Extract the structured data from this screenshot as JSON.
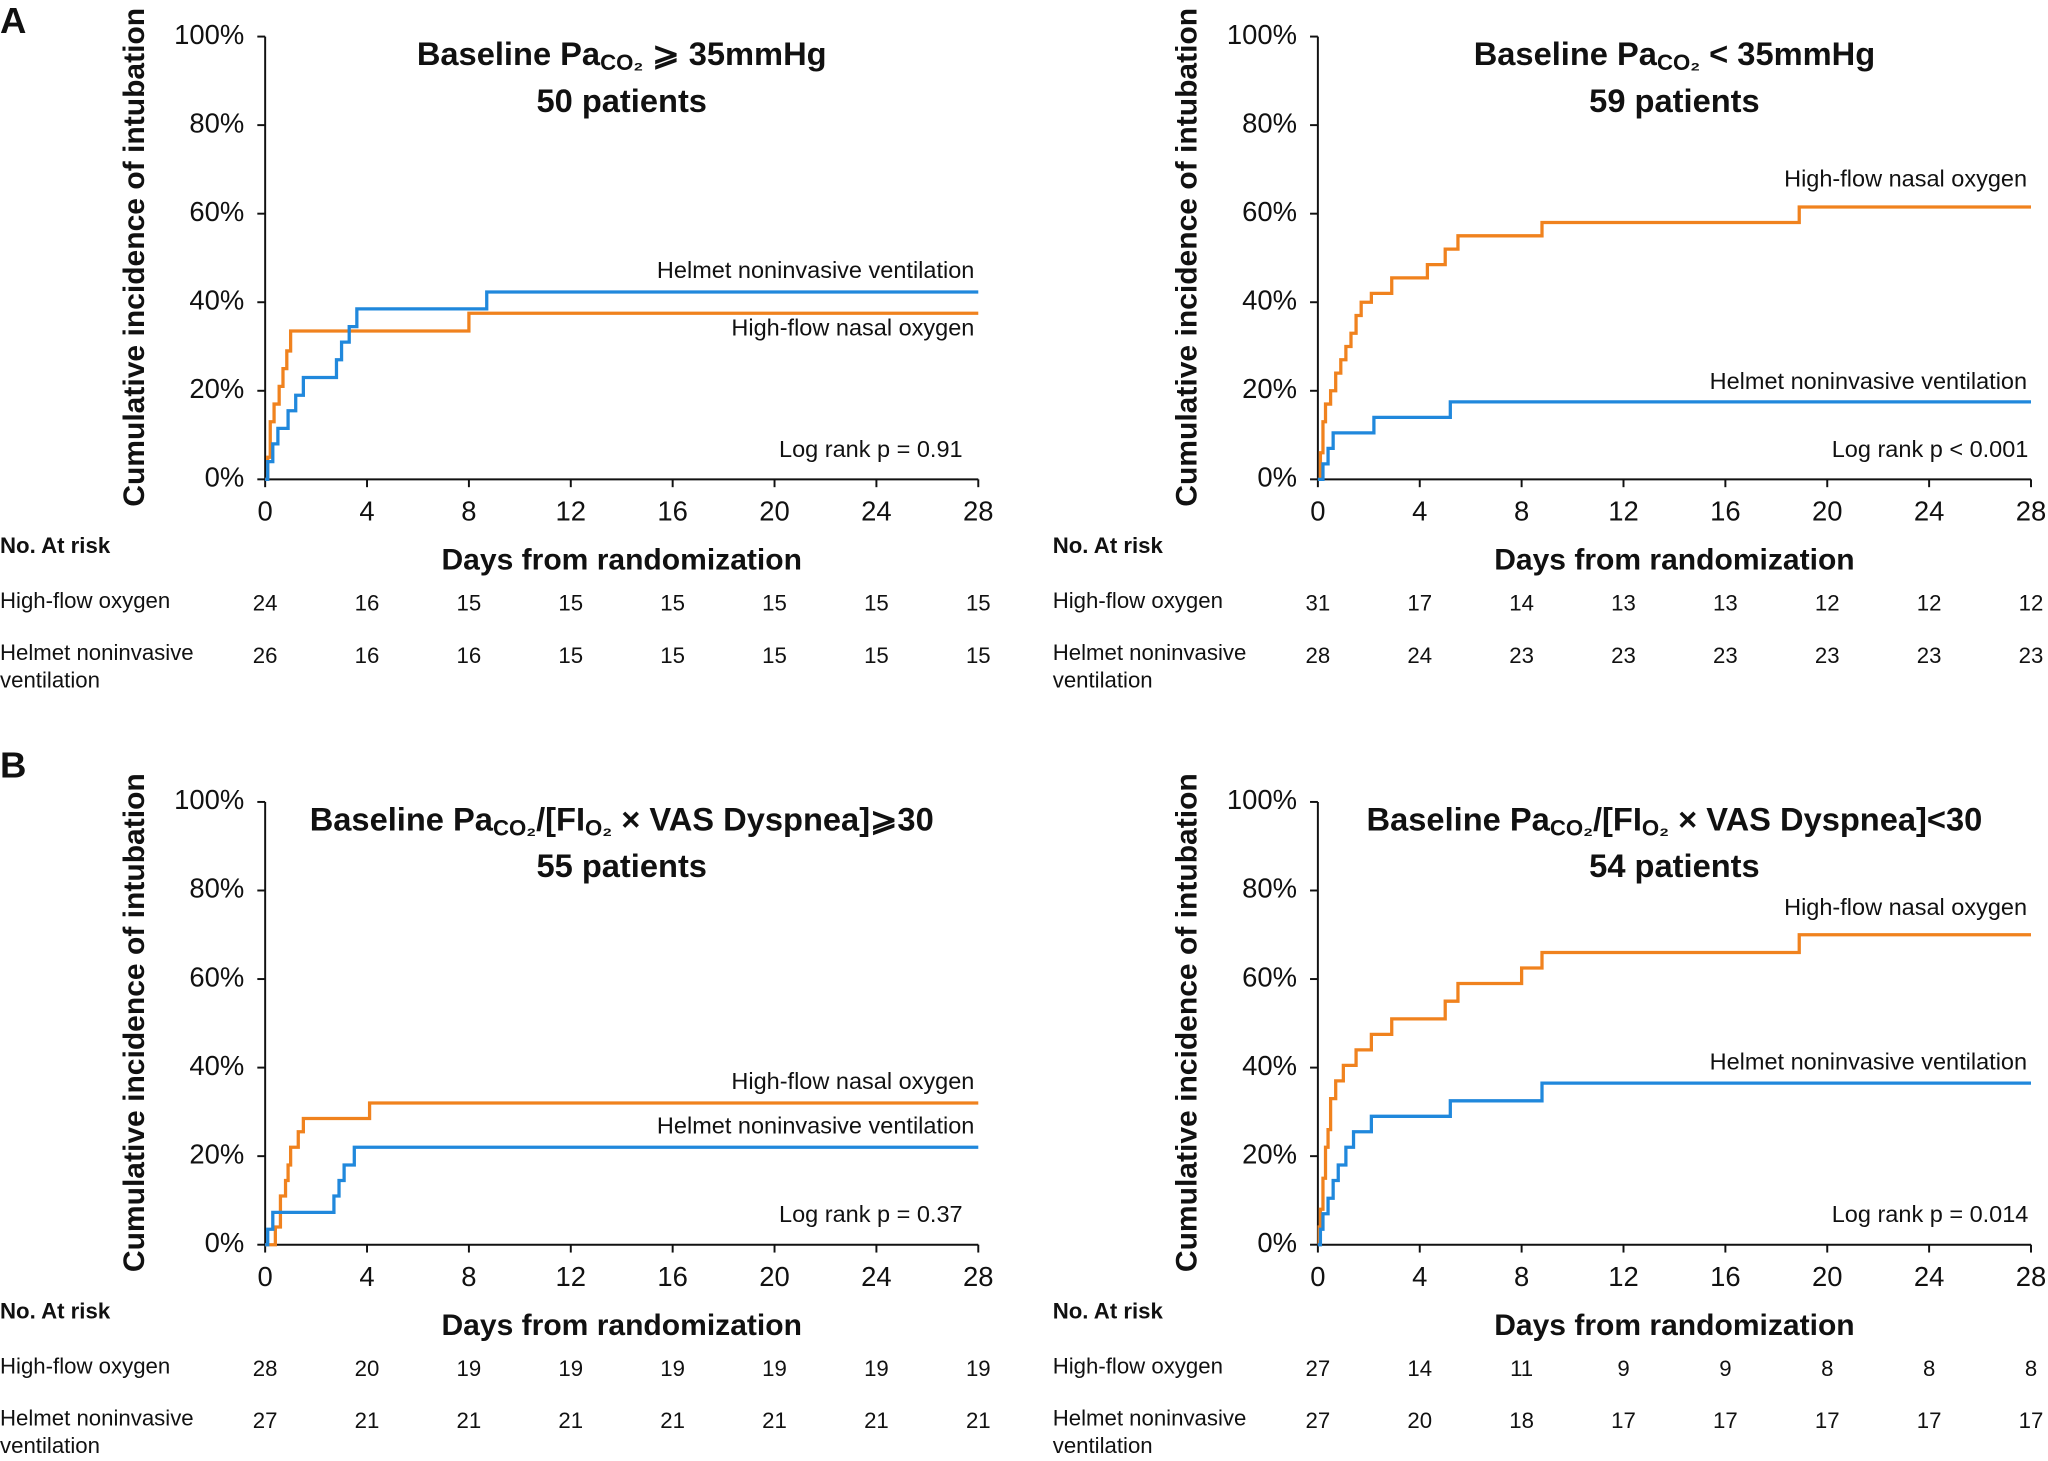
{
  "panel_labels": [
    "A",
    "B"
  ],
  "chart_data": [
    {
      "type": "line",
      "step": true,
      "title": [
        {
          "text": "Baseline Pa"
        },
        {
          "text": "CO₂",
          "sub": true
        },
        {
          "text": " ⩾ 35mmHg"
        }
      ],
      "subtitle": "50 patients",
      "ylabel": "Cumulative incidence of intubation",
      "xlabel": "Days from randomization",
      "xlim": [
        0,
        28
      ],
      "xticks": [
        0,
        4,
        8,
        12,
        16,
        20,
        24,
        28
      ],
      "ylim": [
        0,
        100
      ],
      "yticks": [
        {
          "value": 0,
          "label": "0%"
        },
        {
          "value": 20,
          "label": "20%"
        },
        {
          "value": 40,
          "label": "40%"
        },
        {
          "value": 60,
          "label": "60%"
        },
        {
          "value": 80,
          "label": "80%"
        },
        {
          "value": 100,
          "label": "100%"
        }
      ],
      "series": [
        {
          "name": "High-flow nasal oxygen",
          "color": "#f0821e",
          "x": [
            0,
            0.1,
            0.2,
            0.35,
            0.55,
            0.7,
            0.85,
            1.0,
            8,
            28
          ],
          "values": [
            0,
            5,
            13,
            17,
            21,
            25,
            29,
            33.5,
            37.5,
            37.5
          ]
        },
        {
          "name": "Helmet noninvasive ventilation",
          "color": "#2088dc",
          "x": [
            0,
            0.1,
            0.3,
            0.5,
            0.9,
            1.2,
            1.5,
            2.8,
            3.0,
            3.3,
            3.6,
            8.7,
            28
          ],
          "values": [
            0,
            4,
            8,
            11.5,
            15.5,
            19,
            23,
            27,
            31,
            34.5,
            38.5,
            42.3,
            42.3
          ]
        }
      ],
      "annotation": "Log rank p = 0.91",
      "risk_table": {
        "header": "No. At risk",
        "rows": [
          {
            "label": [
              "High-flow oxygen"
            ],
            "values": [
              24,
              16,
              15,
              15,
              15,
              15,
              15,
              15
            ]
          },
          {
            "label": [
              "Helmet noninvasive",
              "ventilation"
            ],
            "values": [
              26,
              16,
              16,
              15,
              15,
              15,
              15,
              15
            ]
          }
        ]
      }
    },
    {
      "type": "line",
      "step": true,
      "title": [
        {
          "text": "Baseline Pa"
        },
        {
          "text": "CO₂",
          "sub": true
        },
        {
          "text": " < 35mmHg"
        }
      ],
      "subtitle": "59 patients",
      "ylabel": "Cumulative incidence of intubation",
      "xlabel": "Days from randomization",
      "xlim": [
        0,
        28
      ],
      "xticks": [
        0,
        4,
        8,
        12,
        16,
        20,
        24,
        28
      ],
      "ylim": [
        0,
        100
      ],
      "yticks": [
        {
          "value": 0,
          "label": "0%"
        },
        {
          "value": 20,
          "label": "20%"
        },
        {
          "value": 40,
          "label": "40%"
        },
        {
          "value": 60,
          "label": "60%"
        },
        {
          "value": 80,
          "label": "80%"
        },
        {
          "value": 100,
          "label": "100%"
        }
      ],
      "series": [
        {
          "name": "High-flow nasal oxygen",
          "color": "#f0821e",
          "x": [
            0,
            0.1,
            0.2,
            0.3,
            0.5,
            0.7,
            0.9,
            1.1,
            1.3,
            1.5,
            1.7,
            2.1,
            2.9,
            4.3,
            5.0,
            5.5,
            8.8,
            18.9,
            28
          ],
          "values": [
            0,
            6,
            13,
            17,
            20,
            24,
            27,
            30,
            33,
            37,
            40,
            42,
            45.5,
            48.5,
            52,
            55,
            58,
            61.5,
            61.5
          ]
        },
        {
          "name": "Helmet noninvasive ventilation",
          "color": "#2088dc",
          "x": [
            0,
            0.2,
            0.4,
            0.6,
            2.2,
            5.2,
            28
          ],
          "values": [
            0,
            3.5,
            7,
            10.5,
            14,
            17.5,
            17.5
          ]
        }
      ],
      "annotation": "Log rank p < 0.001",
      "risk_table": {
        "header": "No. At risk",
        "rows": [
          {
            "label": [
              "High-flow oxygen"
            ],
            "values": [
              31,
              17,
              14,
              13,
              13,
              12,
              12,
              12
            ]
          },
          {
            "label": [
              "Helmet noninvasive",
              "ventilation"
            ],
            "values": [
              28,
              24,
              23,
              23,
              23,
              23,
              23,
              23
            ]
          }
        ]
      }
    },
    {
      "type": "line",
      "step": true,
      "title": [
        {
          "text": "Baseline Pa"
        },
        {
          "text": "CO₂",
          "sub": true
        },
        {
          "text": "/[FI"
        },
        {
          "text": "O₂",
          "sub": true
        },
        {
          "text": " × VAS Dyspnea]⩾30"
        }
      ],
      "subtitle": "55 patients",
      "ylabel": "Cumulative incidence of intubation",
      "xlabel": "Days from randomization",
      "xlim": [
        0,
        28
      ],
      "xticks": [
        0,
        4,
        8,
        12,
        16,
        20,
        24,
        28
      ],
      "ylim": [
        0,
        100
      ],
      "yticks": [
        {
          "value": 0,
          "label": "0%"
        },
        {
          "value": 20,
          "label": "20%"
        },
        {
          "value": 40,
          "label": "40%"
        },
        {
          "value": 60,
          "label": "60%"
        },
        {
          "value": 80,
          "label": "80%"
        },
        {
          "value": 100,
          "label": "100%"
        }
      ],
      "series": [
        {
          "name": "High-flow nasal oxygen",
          "color": "#f0821e",
          "x": [
            0,
            0.4,
            0.6,
            0.8,
            0.9,
            1.0,
            1.3,
            1.5,
            4.1,
            28
          ],
          "values": [
            0,
            4,
            11,
            14.5,
            18,
            22,
            25.5,
            28.5,
            32,
            32
          ]
        },
        {
          "name": "Helmet noninvasive ventilation",
          "color": "#2088dc",
          "x": [
            0,
            0.1,
            0.3,
            2.7,
            2.9,
            3.1,
            3.5,
            28
          ],
          "values": [
            0,
            3.5,
            7.3,
            11,
            14.5,
            18,
            22,
            22
          ]
        }
      ],
      "annotation": "Log rank p = 0.37",
      "risk_table": {
        "header": "No. At risk",
        "rows": [
          {
            "label": [
              "High-flow oxygen"
            ],
            "values": [
              28,
              20,
              19,
              19,
              19,
              19,
              19,
              19
            ]
          },
          {
            "label": [
              "Helmet noninvasive",
              "ventilation"
            ],
            "values": [
              27,
              21,
              21,
              21,
              21,
              21,
              21,
              21
            ]
          }
        ]
      }
    },
    {
      "type": "line",
      "step": true,
      "title": [
        {
          "text": "Baseline Pa"
        },
        {
          "text": "CO₂",
          "sub": true
        },
        {
          "text": "/[FI"
        },
        {
          "text": "O₂",
          "sub": true
        },
        {
          "text": " × VAS Dyspnea]<30"
        }
      ],
      "subtitle": "54 patients",
      "ylabel": "Cumulative incidence of intubation",
      "xlabel": "Days from randomization",
      "xlim": [
        0,
        28
      ],
      "xticks": [
        0,
        4,
        8,
        12,
        16,
        20,
        24,
        28
      ],
      "ylim": [
        0,
        100
      ],
      "yticks": [
        {
          "value": 0,
          "label": "0%"
        },
        {
          "value": 20,
          "label": "20%"
        },
        {
          "value": 40,
          "label": "40%"
        },
        {
          "value": 60,
          "label": "60%"
        },
        {
          "value": 80,
          "label": "80%"
        },
        {
          "value": 100,
          "label": "100%"
        }
      ],
      "series": [
        {
          "name": "High-flow nasal oxygen",
          "color": "#f0821e",
          "x": [
            0,
            0.05,
            0.1,
            0.2,
            0.3,
            0.4,
            0.5,
            0.7,
            1.0,
            1.5,
            2.1,
            2.9,
            5.0,
            5.5,
            8.0,
            8.8,
            18.9,
            28
          ],
          "values": [
            0,
            4,
            8,
            15,
            22,
            26,
            33,
            37,
            40.5,
            44,
            47.5,
            51,
            55,
            59,
            62.5,
            66,
            70,
            70
          ]
        },
        {
          "name": "Helmet noninvasive ventilation",
          "color": "#2088dc",
          "x": [
            0,
            0.1,
            0.2,
            0.4,
            0.6,
            0.8,
            1.1,
            1.4,
            2.1,
            5.2,
            8.8,
            28
          ],
          "values": [
            0,
            3.5,
            7,
            10.5,
            14.5,
            18,
            22,
            25.5,
            29,
            32.5,
            36.5,
            36.5
          ]
        }
      ],
      "annotation": "Log rank p = 0.014",
      "risk_table": {
        "header": "No. At risk",
        "rows": [
          {
            "label": [
              "High-flow oxygen"
            ],
            "values": [
              27,
              14,
              11,
              9,
              9,
              8,
              8,
              8
            ]
          },
          {
            "label": [
              "Helmet noninvasive",
              "ventilation"
            ],
            "values": [
              27,
              20,
              18,
              17,
              17,
              17,
              17,
              17
            ]
          }
        ]
      }
    }
  ]
}
